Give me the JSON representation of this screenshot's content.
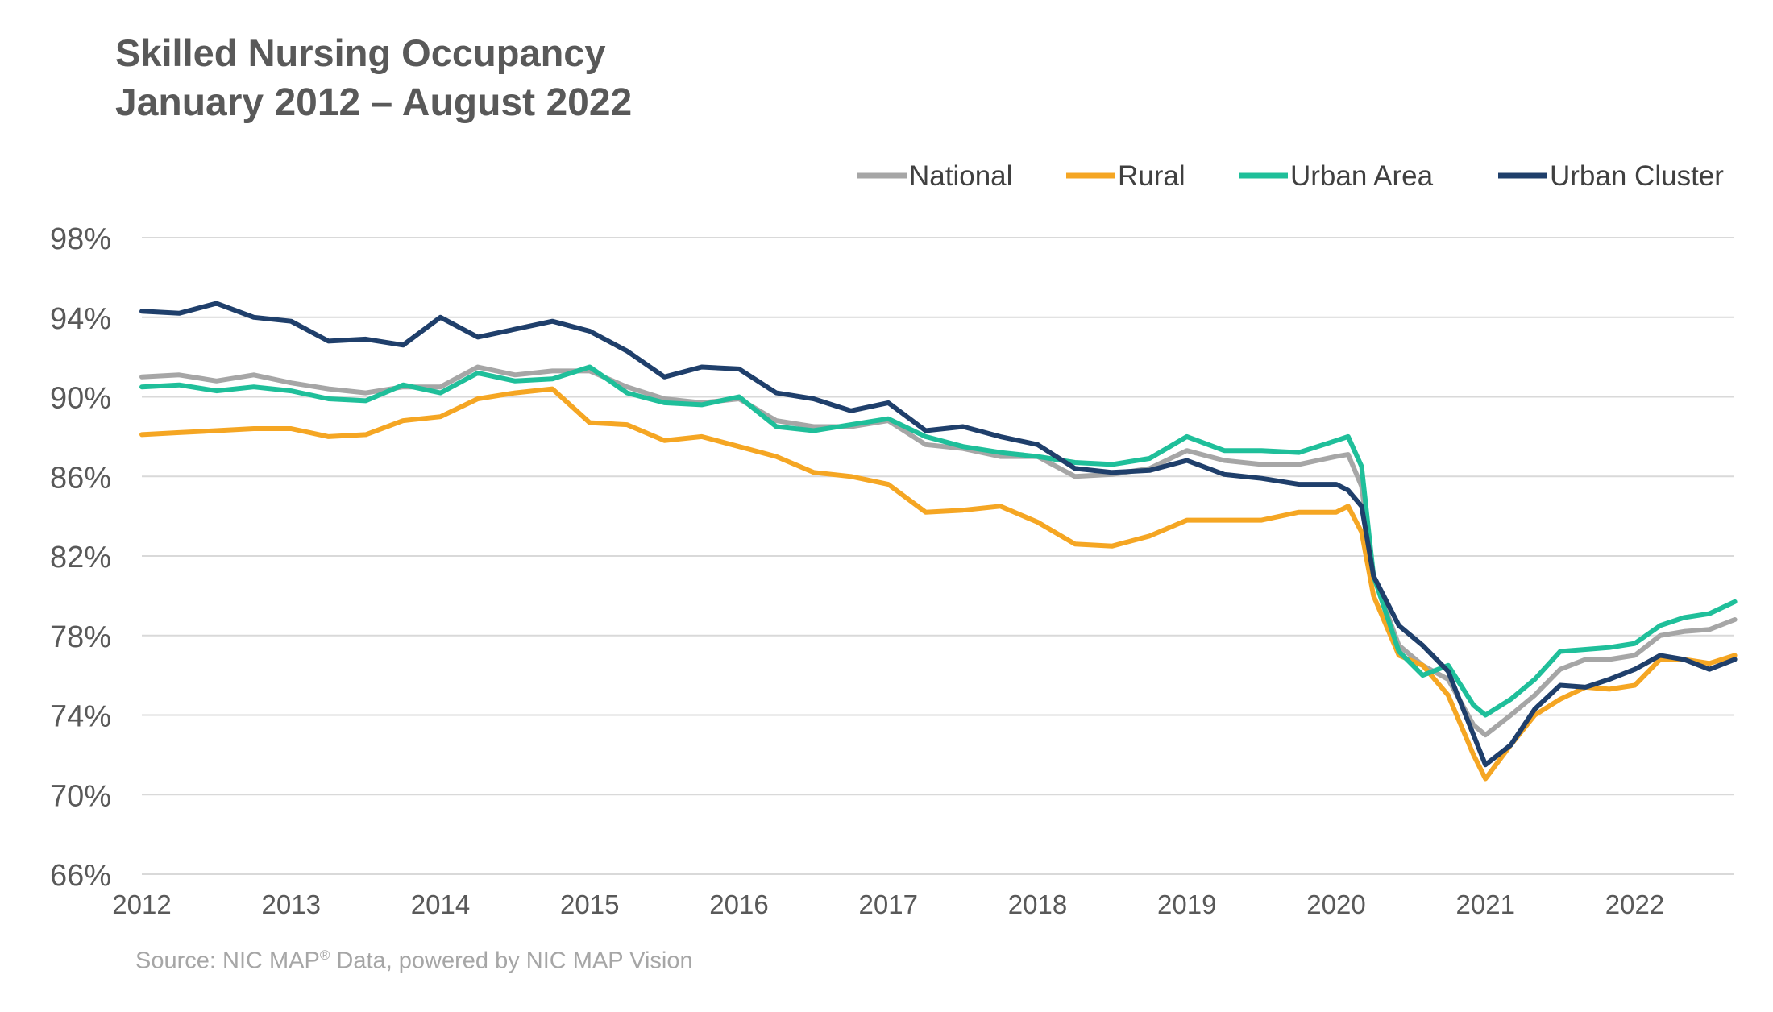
{
  "header": {
    "title": "Skilled Nursing Occupancy",
    "subtitle": "January 2012 – August 2022"
  },
  "footer": {
    "source_prefix": "Source: NIC MAP",
    "source_reg": "®",
    "source_suffix": " Data, powered by NIC MAP Vision"
  },
  "chart_data": {
    "type": "line",
    "x_unit": "year",
    "x_range": [
      2012,
      2022.6667
    ],
    "xticks": [
      "2012",
      "2013",
      "2014",
      "2015",
      "2016",
      "2017",
      "2018",
      "2019",
      "2020",
      "2021",
      "2022"
    ],
    "ylim": [
      66,
      98
    ],
    "yticks": [
      "66%",
      "70%",
      "74%",
      "78%",
      "82%",
      "86%",
      "90%",
      "94%",
      "98%"
    ],
    "grid": "horizontal",
    "legend_position": "top-right",
    "series": [
      {
        "name": "National",
        "color": "#a6a6a6",
        "points": [
          [
            2012.0,
            91.0
          ],
          [
            2012.25,
            91.1
          ],
          [
            2012.5,
            90.8
          ],
          [
            2012.75,
            91.1
          ],
          [
            2013.0,
            90.7
          ],
          [
            2013.25,
            90.4
          ],
          [
            2013.5,
            90.2
          ],
          [
            2013.75,
            90.5
          ],
          [
            2014.0,
            90.5
          ],
          [
            2014.25,
            91.5
          ],
          [
            2014.5,
            91.1
          ],
          [
            2014.75,
            91.3
          ],
          [
            2015.0,
            91.3
          ],
          [
            2015.25,
            90.5
          ],
          [
            2015.5,
            89.9
          ],
          [
            2015.75,
            89.7
          ],
          [
            2016.0,
            89.9
          ],
          [
            2016.25,
            88.8
          ],
          [
            2016.5,
            88.5
          ],
          [
            2016.75,
            88.5
          ],
          [
            2017.0,
            88.8
          ],
          [
            2017.25,
            87.6
          ],
          [
            2017.5,
            87.4
          ],
          [
            2017.75,
            87.0
          ],
          [
            2018.0,
            87.0
          ],
          [
            2018.25,
            86.0
          ],
          [
            2018.5,
            86.1
          ],
          [
            2018.75,
            86.4
          ],
          [
            2019.0,
            87.3
          ],
          [
            2019.25,
            86.8
          ],
          [
            2019.5,
            86.6
          ],
          [
            2019.75,
            86.6
          ],
          [
            2020.0,
            87.0
          ],
          [
            2020.08,
            87.1
          ],
          [
            2020.17,
            85.5
          ],
          [
            2020.25,
            81.0
          ],
          [
            2020.42,
            77.5
          ],
          [
            2020.58,
            76.5
          ],
          [
            2020.75,
            75.8
          ],
          [
            2020.92,
            73.5
          ],
          [
            2021.0,
            73.0
          ],
          [
            2021.17,
            74.0
          ],
          [
            2021.33,
            75.0
          ],
          [
            2021.5,
            76.3
          ],
          [
            2021.67,
            76.8
          ],
          [
            2021.83,
            76.8
          ],
          [
            2022.0,
            77.0
          ],
          [
            2022.17,
            78.0
          ],
          [
            2022.33,
            78.2
          ],
          [
            2022.5,
            78.3
          ],
          [
            2022.67,
            78.8
          ]
        ]
      },
      {
        "name": "Rural",
        "color": "#f5a623",
        "points": [
          [
            2012.0,
            88.1
          ],
          [
            2012.25,
            88.2
          ],
          [
            2012.5,
            88.3
          ],
          [
            2012.75,
            88.4
          ],
          [
            2013.0,
            88.4
          ],
          [
            2013.25,
            88.0
          ],
          [
            2013.5,
            88.1
          ],
          [
            2013.75,
            88.8
          ],
          [
            2014.0,
            89.0
          ],
          [
            2014.25,
            89.9
          ],
          [
            2014.5,
            90.2
          ],
          [
            2014.75,
            90.4
          ],
          [
            2015.0,
            88.7
          ],
          [
            2015.25,
            88.6
          ],
          [
            2015.5,
            87.8
          ],
          [
            2015.75,
            88.0
          ],
          [
            2016.0,
            87.5
          ],
          [
            2016.25,
            87.0
          ],
          [
            2016.5,
            86.2
          ],
          [
            2016.75,
            86.0
          ],
          [
            2017.0,
            85.6
          ],
          [
            2017.25,
            84.2
          ],
          [
            2017.5,
            84.3
          ],
          [
            2017.75,
            84.5
          ],
          [
            2018.0,
            83.7
          ],
          [
            2018.25,
            82.6
          ],
          [
            2018.5,
            82.5
          ],
          [
            2018.75,
            83.0
          ],
          [
            2019.0,
            83.8
          ],
          [
            2019.25,
            83.8
          ],
          [
            2019.5,
            83.8
          ],
          [
            2019.75,
            84.2
          ],
          [
            2020.0,
            84.2
          ],
          [
            2020.08,
            84.5
          ],
          [
            2020.17,
            83.2
          ],
          [
            2020.25,
            80.0
          ],
          [
            2020.42,
            77.0
          ],
          [
            2020.58,
            76.5
          ],
          [
            2020.75,
            75.0
          ],
          [
            2020.92,
            72.0
          ],
          [
            2021.0,
            70.8
          ],
          [
            2021.17,
            72.5
          ],
          [
            2021.33,
            74.0
          ],
          [
            2021.5,
            74.8
          ],
          [
            2021.67,
            75.4
          ],
          [
            2021.83,
            75.3
          ],
          [
            2022.0,
            75.5
          ],
          [
            2022.17,
            76.8
          ],
          [
            2022.33,
            76.8
          ],
          [
            2022.5,
            76.6
          ],
          [
            2022.67,
            77.0
          ]
        ]
      },
      {
        "name": "Urban Area",
        "color": "#1fbf9a",
        "points": [
          [
            2012.0,
            90.5
          ],
          [
            2012.25,
            90.6
          ],
          [
            2012.5,
            90.3
          ],
          [
            2012.75,
            90.5
          ],
          [
            2013.0,
            90.3
          ],
          [
            2013.25,
            89.9
          ],
          [
            2013.5,
            89.8
          ],
          [
            2013.75,
            90.6
          ],
          [
            2014.0,
            90.2
          ],
          [
            2014.25,
            91.2
          ],
          [
            2014.5,
            90.8
          ],
          [
            2014.75,
            90.9
          ],
          [
            2015.0,
            91.5
          ],
          [
            2015.25,
            90.2
          ],
          [
            2015.5,
            89.7
          ],
          [
            2015.75,
            89.6
          ],
          [
            2016.0,
            90.0
          ],
          [
            2016.25,
            88.5
          ],
          [
            2016.5,
            88.3
          ],
          [
            2016.75,
            88.6
          ],
          [
            2017.0,
            88.9
          ],
          [
            2017.25,
            88.0
          ],
          [
            2017.5,
            87.5
          ],
          [
            2017.75,
            87.2
          ],
          [
            2018.0,
            87.0
          ],
          [
            2018.25,
            86.7
          ],
          [
            2018.5,
            86.6
          ],
          [
            2018.75,
            86.9
          ],
          [
            2019.0,
            88.0
          ],
          [
            2019.25,
            87.3
          ],
          [
            2019.5,
            87.3
          ],
          [
            2019.75,
            87.2
          ],
          [
            2020.0,
            87.8
          ],
          [
            2020.08,
            88.0
          ],
          [
            2020.17,
            86.5
          ],
          [
            2020.25,
            81.0
          ],
          [
            2020.42,
            77.2
          ],
          [
            2020.58,
            76.0
          ],
          [
            2020.75,
            76.5
          ],
          [
            2020.92,
            74.5
          ],
          [
            2021.0,
            74.0
          ],
          [
            2021.17,
            74.8
          ],
          [
            2021.33,
            75.8
          ],
          [
            2021.5,
            77.2
          ],
          [
            2021.67,
            77.3
          ],
          [
            2021.83,
            77.4
          ],
          [
            2022.0,
            77.6
          ],
          [
            2022.17,
            78.5
          ],
          [
            2022.33,
            78.9
          ],
          [
            2022.5,
            79.1
          ],
          [
            2022.67,
            79.7
          ]
        ]
      },
      {
        "name": "Urban Cluster",
        "color": "#1f3f6b",
        "points": [
          [
            2012.0,
            94.3
          ],
          [
            2012.25,
            94.2
          ],
          [
            2012.5,
            94.7
          ],
          [
            2012.75,
            94.0
          ],
          [
            2013.0,
            93.8
          ],
          [
            2013.25,
            92.8
          ],
          [
            2013.5,
            92.9
          ],
          [
            2013.75,
            92.6
          ],
          [
            2014.0,
            94.0
          ],
          [
            2014.25,
            93.0
          ],
          [
            2014.5,
            93.4
          ],
          [
            2014.75,
            93.8
          ],
          [
            2015.0,
            93.3
          ],
          [
            2015.25,
            92.3
          ],
          [
            2015.5,
            91.0
          ],
          [
            2015.75,
            91.5
          ],
          [
            2016.0,
            91.4
          ],
          [
            2016.25,
            90.2
          ],
          [
            2016.5,
            89.9
          ],
          [
            2016.75,
            89.3
          ],
          [
            2017.0,
            89.7
          ],
          [
            2017.25,
            88.3
          ],
          [
            2017.5,
            88.5
          ],
          [
            2017.75,
            88.0
          ],
          [
            2018.0,
            87.6
          ],
          [
            2018.25,
            86.4
          ],
          [
            2018.5,
            86.2
          ],
          [
            2018.75,
            86.3
          ],
          [
            2019.0,
            86.8
          ],
          [
            2019.25,
            86.1
          ],
          [
            2019.5,
            85.9
          ],
          [
            2019.75,
            85.6
          ],
          [
            2020.0,
            85.6
          ],
          [
            2020.08,
            85.3
          ],
          [
            2020.17,
            84.5
          ],
          [
            2020.25,
            81.0
          ],
          [
            2020.42,
            78.5
          ],
          [
            2020.58,
            77.5
          ],
          [
            2020.75,
            76.2
          ],
          [
            2020.92,
            73.0
          ],
          [
            2021.0,
            71.5
          ],
          [
            2021.17,
            72.5
          ],
          [
            2021.33,
            74.3
          ],
          [
            2021.5,
            75.5
          ],
          [
            2021.67,
            75.4
          ],
          [
            2021.83,
            75.8
          ],
          [
            2022.0,
            76.3
          ],
          [
            2022.17,
            77.0
          ],
          [
            2022.33,
            76.8
          ],
          [
            2022.5,
            76.3
          ],
          [
            2022.67,
            76.8
          ]
        ]
      }
    ]
  }
}
